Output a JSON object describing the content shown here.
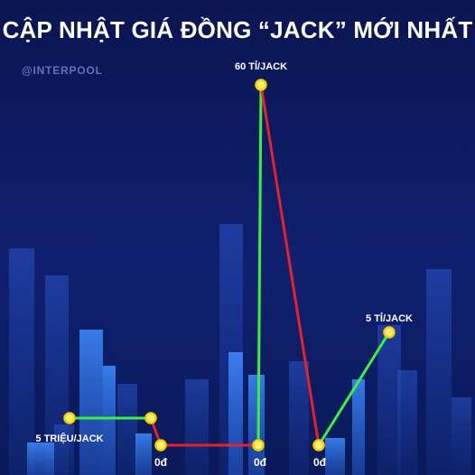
{
  "title": "CẬP NHẬT GIÁ ĐỒNG “JACK” MỚI NHẤT",
  "brand": "@INTERPOOL",
  "colors": {
    "background_top": "#0c1a5e",
    "background_bottom": "#0a1236",
    "up_segment": "#38f23e",
    "down_segment": "#e8202a",
    "marker_fill": "#fff176",
    "marker_stroke": "#f5d000"
  },
  "chart_data": {
    "type": "line",
    "title": "CẬP NHẬT GIÁ ĐỒNG “JACK” MỚI NHẤT",
    "xlabel": "",
    "ylabel": "",
    "grid": false,
    "axes_visible": false,
    "scale": "non-linear",
    "points": [
      {
        "step": 1,
        "value_vnd": 5000000,
        "label": "5 TRIỆU/JACK"
      },
      {
        "step": 2,
        "value_vnd": 5000000,
        "label": ""
      },
      {
        "step": 3,
        "value_vnd": 0,
        "label": "0đ"
      },
      {
        "step": 4,
        "value_vnd": 0,
        "label": "0đ"
      },
      {
        "step": 5,
        "value_vnd": 60000000000,
        "label": "60 TỈ/JACK"
      },
      {
        "step": 6,
        "value_vnd": 0,
        "label": "0đ"
      },
      {
        "step": 7,
        "value_vnd": 5000000000,
        "label": "5 TỈ/JACK"
      }
    ]
  }
}
